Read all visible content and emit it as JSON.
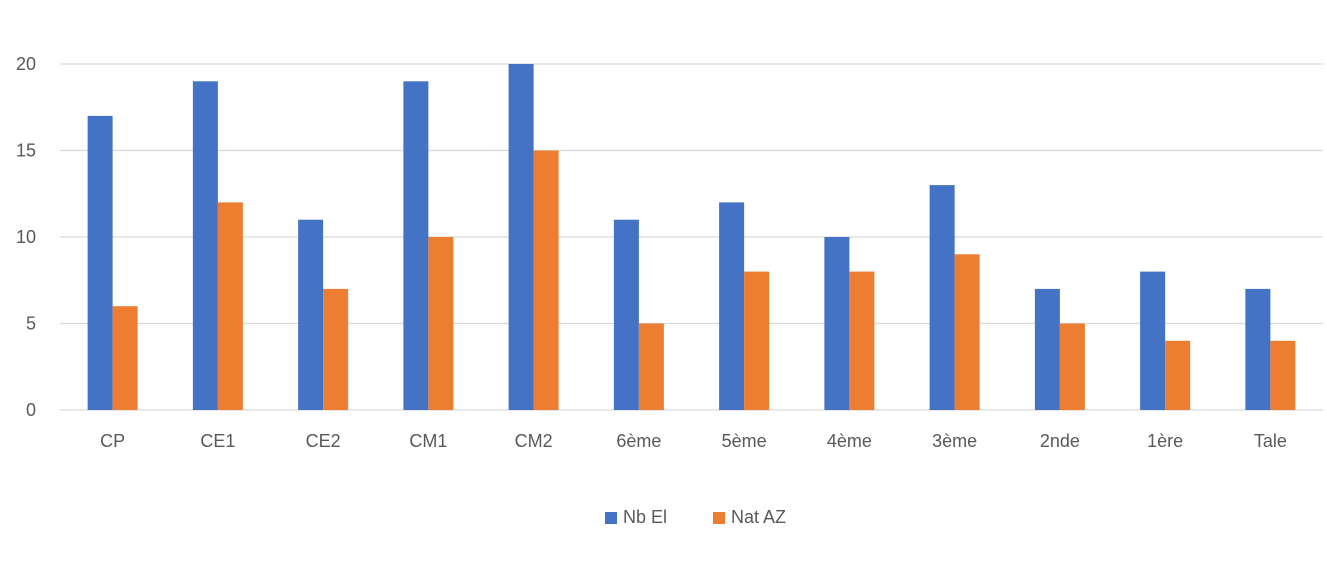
{
  "chart_data": {
    "type": "bar",
    "categories": [
      "CP",
      "CE1",
      "CE2",
      "CM1",
      "CM2",
      "6ème",
      "5ème",
      "4ème",
      "3ème",
      "2nde",
      "1ère",
      "Tale"
    ],
    "series": [
      {
        "name": "Nb El",
        "values": [
          17,
          19,
          11,
          19,
          20,
          11,
          12,
          10,
          13,
          7,
          8,
          7
        ],
        "color": "#4472C4"
      },
      {
        "name": "Nat AZ",
        "values": [
          6,
          12,
          7,
          10,
          15,
          5,
          8,
          8,
          9,
          5,
          4,
          4
        ],
        "color": "#ED7D31"
      }
    ],
    "title": "",
    "xlabel": "",
    "ylabel": "",
    "ylim": [
      0,
      20
    ],
    "yticks": [
      0,
      5,
      10,
      15,
      20
    ],
    "grid": true,
    "legend_position": "bottom",
    "gridline_color": "#D9D9D9"
  }
}
